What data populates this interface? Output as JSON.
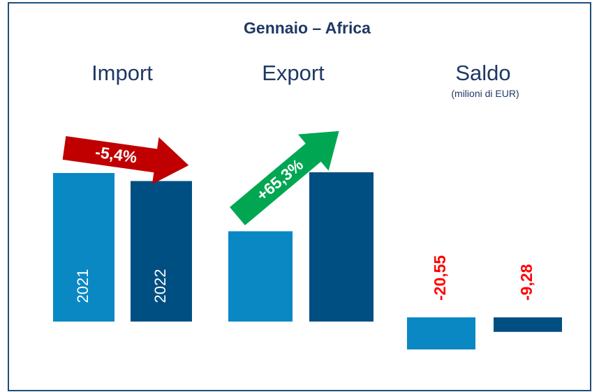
{
  "title": "Gennaio – Africa",
  "chart_data": [
    {
      "type": "bar",
      "title": "Import",
      "categories": [
        "2021",
        "2022"
      ],
      "values": [
        34.92,
        33.03
      ],
      "colors": [
        "#0a88c4",
        "#004f82"
      ],
      "annotation": "-5,4%",
      "annotation_color": "#c00000"
    },
    {
      "type": "bar",
      "title": "Export",
      "categories": [
        null,
        null
      ],
      "values": [
        14.37,
        23.75
      ],
      "colors": [
        "#0a88c4",
        "#004f82"
      ],
      "annotation": "+65,3%",
      "annotation_color": "#00a651"
    },
    {
      "type": "bar",
      "title": "Saldo",
      "subtitle": "(milioni di EUR)",
      "categories": [
        null,
        null
      ],
      "values": [
        -20.55,
        -9.28
      ],
      "value_labels": [
        "-20,55",
        "-9,28"
      ],
      "value_label_color": "#ff0000",
      "colors": [
        "#0a88c4",
        "#004f82"
      ]
    }
  ]
}
